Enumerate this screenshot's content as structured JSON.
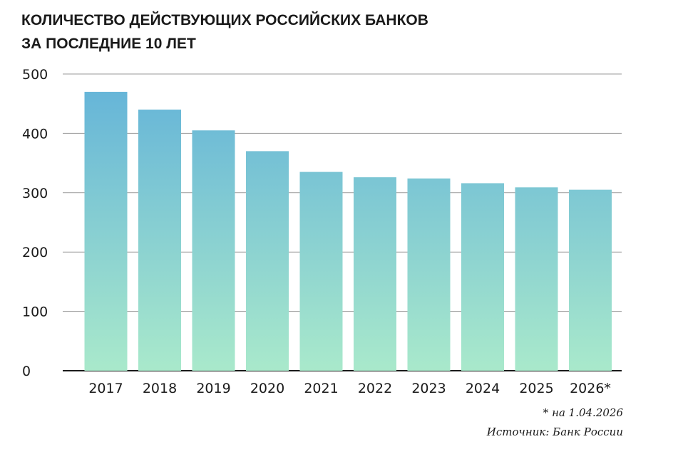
{
  "title_lines": [
    "КОЛИЧЕСТВО ДЕЙСТВУЮЩИХ РОССИЙСКИХ БАНКОВ",
    "ЗА ПОСЛЕДНИЕ 10 ЛЕТ"
  ],
  "footnote": "* на 1.04.2026",
  "source": "Источник: Банк России",
  "colors": {
    "bar_top": "#62b2d9",
    "bar_bottom": "#a9e9cb",
    "grid": "#9a9a9a",
    "baseline": "#1a1a1a"
  },
  "chart_data": {
    "type": "bar",
    "title": "КОЛИЧЕСТВО ДЕЙСТВУЮЩИХ РОССИЙСКИХ БАНКОВ ЗА ПОСЛЕДНИЕ 10 ЛЕТ",
    "categories": [
      "2017",
      "2018",
      "2019",
      "2020",
      "2021",
      "2022",
      "2023",
      "2024",
      "2025",
      "2026*"
    ],
    "values": [
      470,
      440,
      405,
      370,
      335,
      326,
      324,
      316,
      309,
      305
    ],
    "ylim": [
      0,
      500
    ],
    "yticks": [
      0,
      100,
      200,
      300,
      400,
      500
    ],
    "xlabel": "",
    "ylabel": "",
    "grid": true,
    "legend": "none"
  }
}
